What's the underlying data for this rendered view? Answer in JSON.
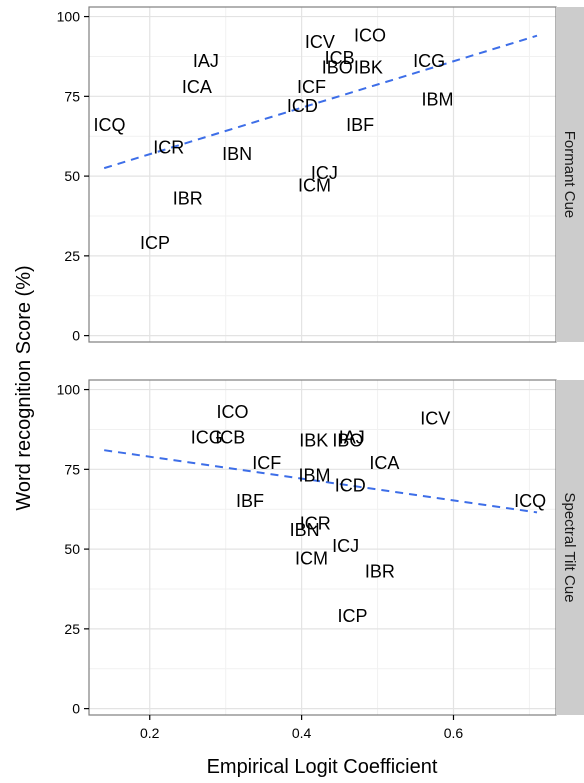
{
  "chart_data": {
    "type": "scatter",
    "xlabel": "Empirical Logit Coefficient",
    "ylabel": "Word recognition Score (%)",
    "xlim": [
      0.12,
      0.735
    ],
    "ylim": [
      -2,
      103
    ],
    "x_ticks": [
      "0.2",
      "0.4",
      "0.6"
    ],
    "x_tick_values": [
      0.2,
      0.4,
      0.6
    ],
    "y_ticks": [
      "0",
      "25",
      "50",
      "75",
      "100"
    ],
    "y_tick_values": [
      0,
      25,
      50,
      75,
      100
    ],
    "grid": true,
    "trend_line": "linear fit, dashed",
    "panels": [
      {
        "strip": "Formant Cue",
        "points": [
          {
            "label": "ICV",
            "x": 0.424,
            "y": 92
          },
          {
            "label": "ICO",
            "x": 0.49,
            "y": 94
          },
          {
            "label": "IAJ",
            "x": 0.274,
            "y": 86
          },
          {
            "label": "ICB",
            "x": 0.45,
            "y": 87
          },
          {
            "label": "IBO",
            "x": 0.447,
            "y": 84
          },
          {
            "label": "IBK",
            "x": 0.488,
            "y": 84
          },
          {
            "label": "ICG",
            "x": 0.568,
            "y": 86
          },
          {
            "label": "ICA",
            "x": 0.262,
            "y": 78
          },
          {
            "label": "ICF",
            "x": 0.413,
            "y": 78
          },
          {
            "label": "ICD",
            "x": 0.401,
            "y": 72
          },
          {
            "label": "IBM",
            "x": 0.579,
            "y": 74
          },
          {
            "label": "ICQ",
            "x": 0.147,
            "y": 66
          },
          {
            "label": "IBF",
            "x": 0.477,
            "y": 66
          },
          {
            "label": "ICR",
            "x": 0.225,
            "y": 59
          },
          {
            "label": "IBN",
            "x": 0.315,
            "y": 57
          },
          {
            "label": "ICJ",
            "x": 0.43,
            "y": 51
          },
          {
            "label": "ICM",
            "x": 0.417,
            "y": 47
          },
          {
            "label": "IBR",
            "x": 0.25,
            "y": 43
          },
          {
            "label": "ICP",
            "x": 0.207,
            "y": 29
          }
        ],
        "trend": {
          "x": [
            0.14,
            0.71
          ],
          "y": [
            52.5,
            94
          ]
        }
      },
      {
        "strip": "Spectral Tilt Cue",
        "points": [
          {
            "label": "ICO",
            "x": 0.309,
            "y": 93
          },
          {
            "label": "ICG",
            "x": 0.275,
            "y": 85
          },
          {
            "label": "ICB",
            "x": 0.306,
            "y": 85
          },
          {
            "label": "ICV",
            "x": 0.576,
            "y": 91
          },
          {
            "label": "IBK",
            "x": 0.416,
            "y": 84
          },
          {
            "label": "IAJ",
            "x": 0.466,
            "y": 85
          },
          {
            "label": "IBO",
            "x": 0.461,
            "y": 84
          },
          {
            "label": "ICA",
            "x": 0.509,
            "y": 77
          },
          {
            "label": "ICF",
            "x": 0.354,
            "y": 77
          },
          {
            "label": "IBM",
            "x": 0.417,
            "y": 73
          },
          {
            "label": "ICD",
            "x": 0.464,
            "y": 70
          },
          {
            "label": "IBF",
            "x": 0.332,
            "y": 65
          },
          {
            "label": "ICQ",
            "x": 0.701,
            "y": 65
          },
          {
            "label": "ICR",
            "x": 0.418,
            "y": 58
          },
          {
            "label": "IBN",
            "x": 0.404,
            "y": 56
          },
          {
            "label": "ICJ",
            "x": 0.458,
            "y": 51
          },
          {
            "label": "ICM",
            "x": 0.413,
            "y": 47
          },
          {
            "label": "IBR",
            "x": 0.503,
            "y": 43
          },
          {
            "label": "ICP",
            "x": 0.467,
            "y": 29
          }
        ],
        "trend": {
          "x": [
            0.14,
            0.71
          ],
          "y": [
            81,
            61.5
          ]
        }
      }
    ],
    "colors": {
      "panel_bg": "#ffffff",
      "grid_major": "#e3e3e3",
      "grid_minor": "#f1f1f1",
      "frame": "#7f7f7f",
      "strip_bg": "#cccccc",
      "trend": "#3d6ee8"
    }
  }
}
